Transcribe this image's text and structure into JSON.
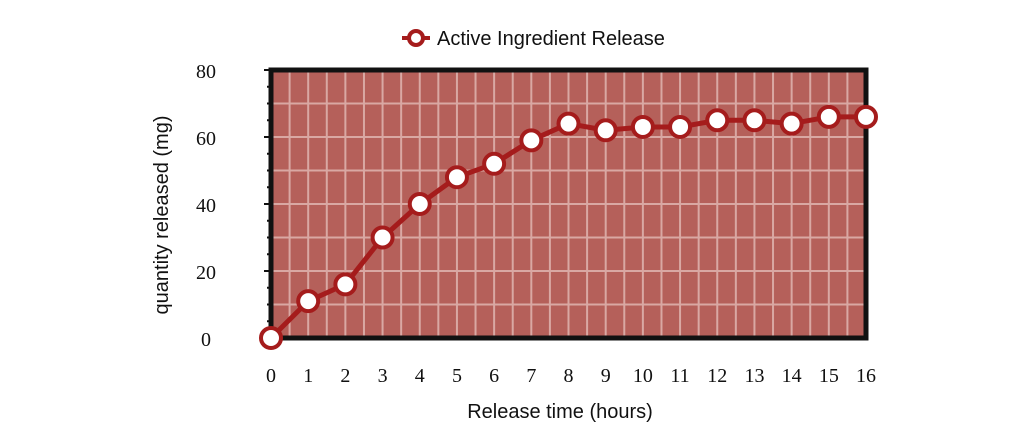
{
  "chart_data": {
    "type": "line",
    "title": "",
    "xlabel": "Release time (hours)",
    "ylabel": "quantity released (mg)",
    "x": [
      0,
      1,
      2,
      3,
      4,
      5,
      6,
      7,
      8,
      9,
      10,
      11,
      12,
      13,
      14,
      15,
      16
    ],
    "xlim": [
      0,
      16
    ],
    "ylim": [
      0,
      80
    ],
    "xticks": [
      "0",
      "1",
      "2",
      "3",
      "4",
      "5",
      "6",
      "7",
      "8",
      "9",
      "10",
      "11",
      "12",
      "13",
      "14",
      "15",
      "16"
    ],
    "yticks": [
      "0",
      "20",
      "40",
      "60",
      "80"
    ],
    "legend_position": "top-center",
    "grid": true,
    "series": [
      {
        "name": "Active Ingredient Release",
        "values": [
          0,
          11,
          16,
          30,
          40,
          48,
          52,
          59,
          64,
          62,
          63,
          63,
          65,
          65,
          64,
          66,
          66
        ]
      }
    ],
    "colors": {
      "plot_background": "#b5605a",
      "grid": "#d9a8a3",
      "line": "#a51c1c",
      "marker_fill": "#ffffff",
      "frame": "#111111"
    }
  }
}
